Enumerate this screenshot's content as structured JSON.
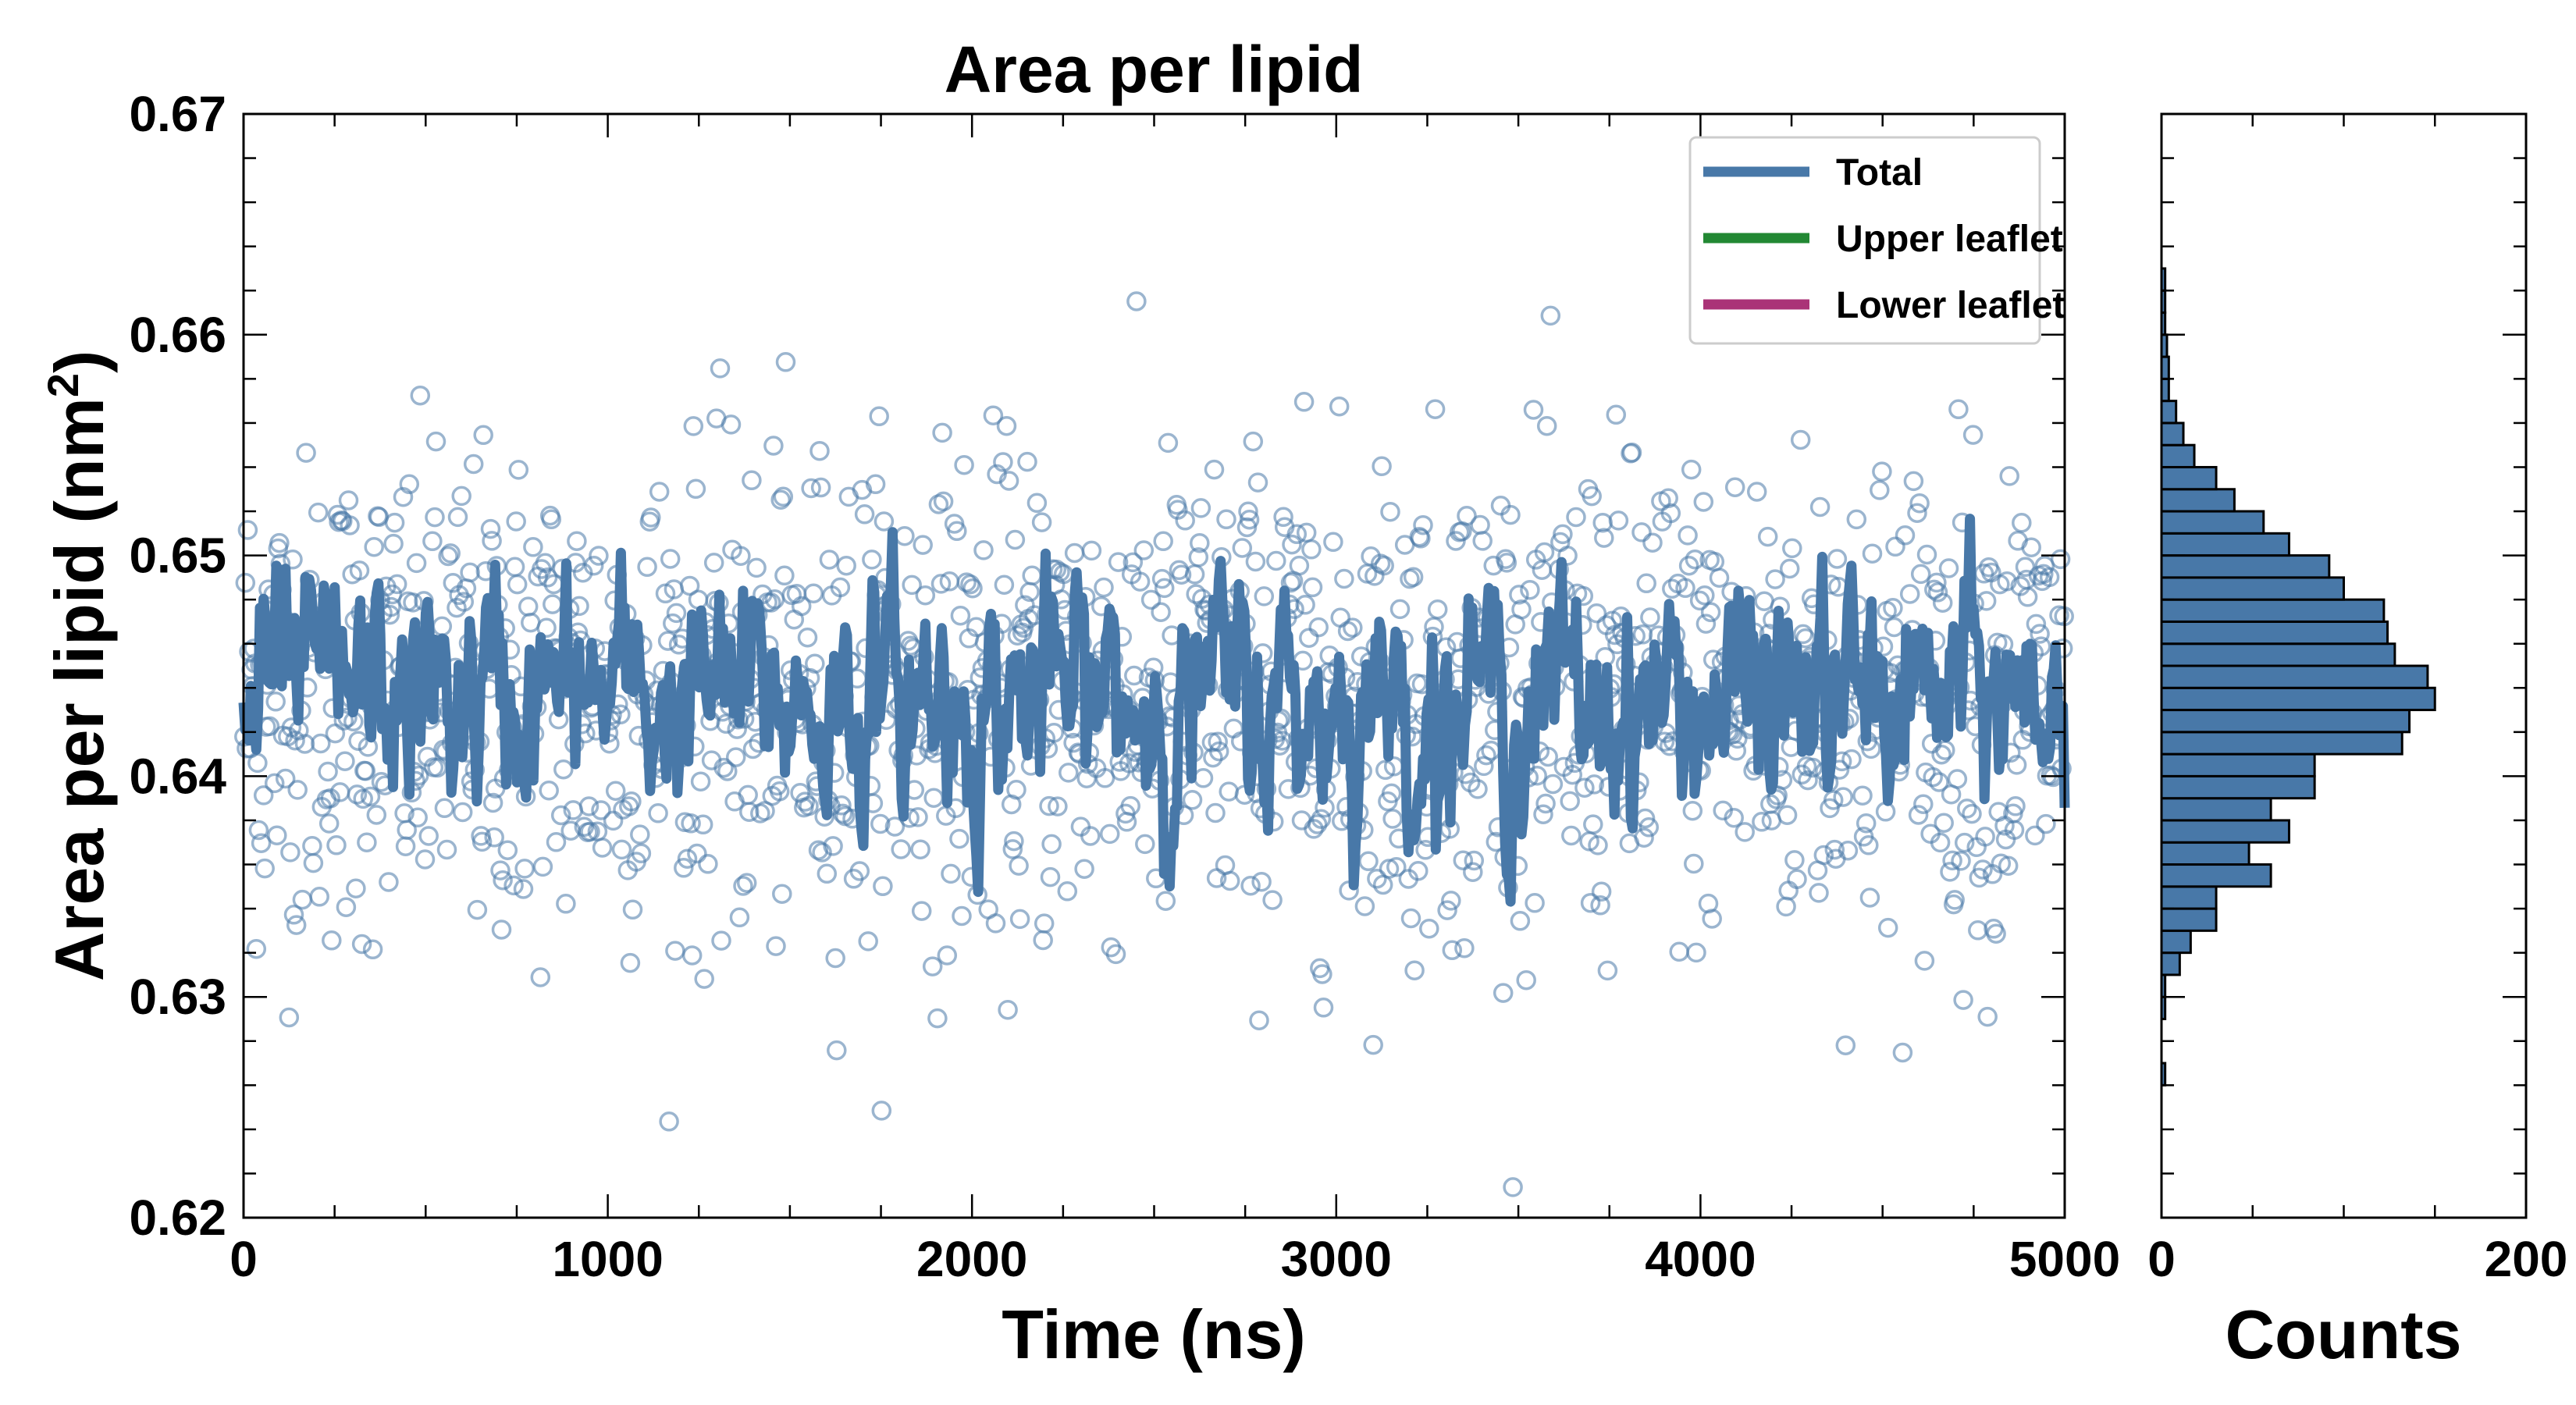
{
  "colors": {
    "total": "#4878a8",
    "upper": "#228833",
    "lower": "#aa3377",
    "scatter": "#4878a8",
    "hist": "#4878a8"
  },
  "chart_data": [
    {
      "type": "scatter",
      "title": "Area per lipid",
      "xlabel": "Time (ns)",
      "ylabel": "Area per lipid (nm",
      "ylabel_sup": "2",
      "ylabel_suffix": ")",
      "xlim": [
        0,
        5000
      ],
      "ylim": [
        0.62,
        0.67
      ],
      "x_ticks": [
        "0",
        "1000",
        "2000",
        "3000",
        "4000",
        "5000"
      ],
      "y_ticks": [
        "0.62",
        "0.63",
        "0.64",
        "0.65",
        "0.66",
        "0.67"
      ],
      "legend_position": "top-right",
      "series": [
        {
          "name": "Total",
          "color_key": "total",
          "kind": "line",
          "mean": 0.6435
        },
        {
          "name": "Upper leaflet",
          "color_key": "upper",
          "kind": "line"
        },
        {
          "name": "Lower leaflet",
          "color_key": "lower",
          "kind": "line"
        }
      ],
      "scatter_mean": 0.6435,
      "scatter_std": 0.0055,
      "scatter_count": 1500
    },
    {
      "type": "bar",
      "orientation": "horizontal",
      "xlabel": "Counts",
      "xlim": [
        0,
        200
      ],
      "x_ticks": [
        "0",
        "200"
      ],
      "bin_width": 0.001,
      "bins_start": [
        0.626,
        0.627,
        0.628,
        0.629,
        0.63,
        0.631,
        0.632,
        0.633,
        0.634,
        0.635,
        0.636,
        0.637,
        0.638,
        0.639,
        0.64,
        0.641,
        0.642,
        0.643,
        0.644,
        0.645,
        0.646,
        0.647,
        0.648,
        0.649,
        0.65,
        0.651,
        0.652,
        0.653,
        0.654,
        0.655,
        0.656,
        0.657,
        0.658,
        0.659,
        0.66,
        0.661,
        0.662
      ],
      "counts": [
        2,
        0,
        0,
        2,
        2,
        10,
        16,
        30,
        30,
        60,
        48,
        70,
        60,
        84,
        84,
        132,
        136,
        150,
        146,
        128,
        124,
        122,
        100,
        92,
        70,
        56,
        40,
        30,
        18,
        12,
        8,
        4,
        4,
        3,
        2,
        2,
        2
      ]
    }
  ]
}
